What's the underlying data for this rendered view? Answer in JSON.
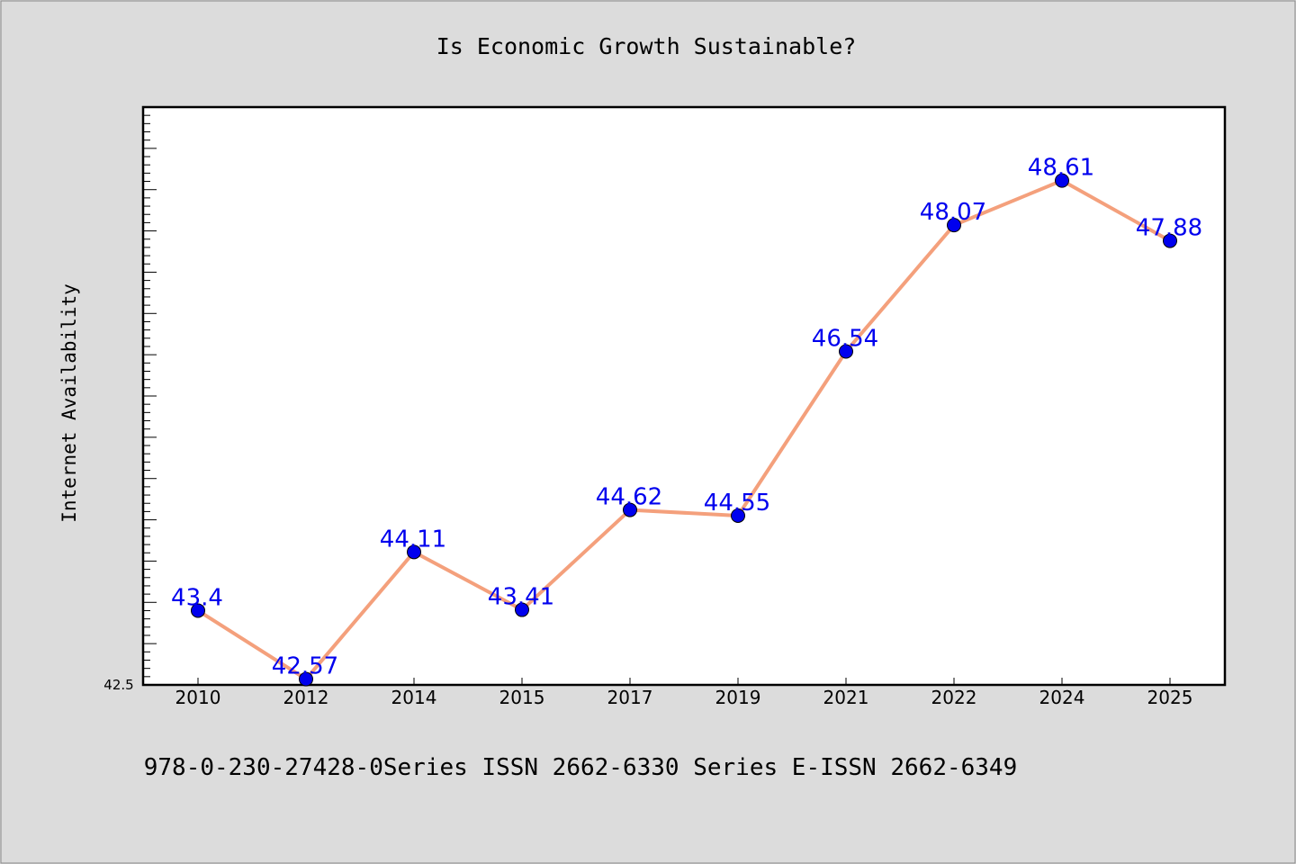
{
  "chart_data": {
    "type": "line",
    "title": "Is Economic Growth Sustainable?",
    "xlabel": "",
    "ylabel": "Internet Availability",
    "categories": [
      "2010",
      "2012",
      "2014",
      "2015",
      "2017",
      "2019",
      "2021",
      "2022",
      "2024",
      "2025"
    ],
    "series": [
      {
        "values": [
          43.4,
          42.57,
          44.11,
          43.41,
          44.62,
          44.55,
          46.54,
          48.07,
          48.61,
          47.88
        ],
        "data_labels": [
          "43.4",
          "42.57",
          "44.11",
          "43.41",
          "44.62",
          "44.55",
          "46.54",
          "48.07",
          "48.61",
          "47.88"
        ]
      }
    ],
    "ylim": [
      42.5,
      49.5
    ],
    "y_tick_labels": [
      "42.5"
    ],
    "grid": false,
    "colors": {
      "line": "#f4a07c",
      "marker": "#0000ee",
      "label": "#0000ee",
      "background": "#dcdcdc",
      "plot_background": "#ffffff"
    }
  },
  "footer": {
    "text": "978-0-230-27428-0Series ISSN 2662-6330 Series E-ISSN 2662-6349"
  }
}
